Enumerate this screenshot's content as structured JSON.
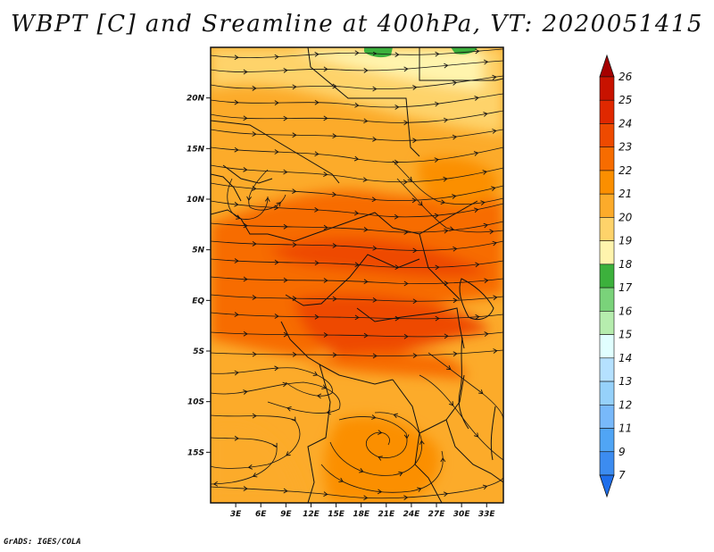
{
  "title": "WBPT [C] and Sreamline at 400hPa, VT: 2020051415",
  "footer": "GrADS: IGES/COLA",
  "map": {
    "lon_labels": [
      "3E",
      "6E",
      "9E",
      "12E",
      "15E",
      "18E",
      "21E",
      "24E",
      "27E",
      "30E",
      "33E"
    ],
    "lon_values": [
      3,
      6,
      9,
      12,
      15,
      18,
      21,
      24,
      27,
      30,
      33
    ],
    "lat_labels": [
      "20N",
      "15N",
      "10N",
      "5N",
      "EQ",
      "5S",
      "10S",
      "15S"
    ],
    "lat_values": [
      20,
      15,
      10,
      5,
      0,
      -5,
      -10,
      -15
    ],
    "lon_range": [
      0,
      35
    ],
    "lat_range": [
      -20,
      25
    ]
  },
  "colorbar": {
    "labels": [
      "26",
      "25",
      "24",
      "23",
      "22",
      "21",
      "20",
      "19",
      "18",
      "17",
      "16",
      "15",
      "14",
      "13",
      "12",
      "11",
      "9",
      "7"
    ],
    "colors": [
      "#a50000",
      "#c81200",
      "#e02800",
      "#ee4a00",
      "#f76c00",
      "#fb8f00",
      "#fcab2a",
      "#fed36a",
      "#fff4ad",
      "#3cb13c",
      "#7ad37a",
      "#b6edae",
      "#e1ffff",
      "#b5e1ff",
      "#96d1fa",
      "#78b9fa",
      "#50a5f5",
      "#3c8cf0",
      "#1e6eeb"
    ]
  }
}
